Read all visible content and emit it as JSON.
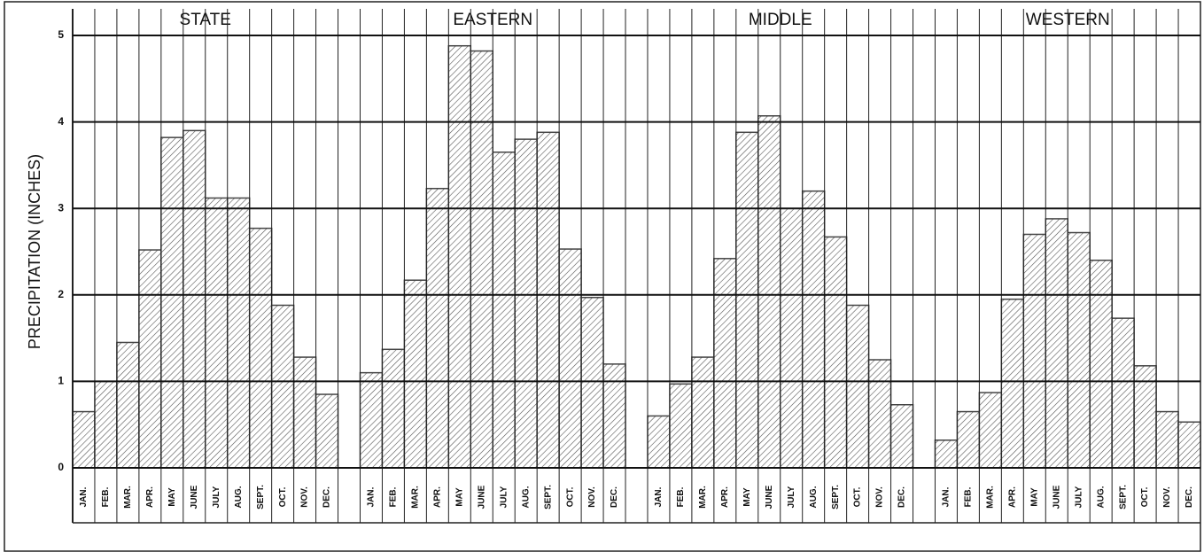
{
  "chart_data": {
    "type": "bar",
    "ylabel": "PRECIPITATION (INCHES)",
    "categories": [
      "JAN.",
      "FEB.",
      "MAR.",
      "APR.",
      "MAY",
      "JUNE",
      "JULY",
      "AUG.",
      "SEPT.",
      "OCT.",
      "NOV.",
      "DEC."
    ],
    "series": [
      {
        "name": "STATE",
        "color": "#444444",
        "values": [
          0.65,
          1.0,
          1.45,
          2.52,
          3.82,
          3.9,
          3.12,
          3.12,
          2.77,
          1.88,
          1.28,
          0.85
        ]
      },
      {
        "name": "EASTERN",
        "color": "#444444",
        "values": [
          1.1,
          1.37,
          2.17,
          3.23,
          4.88,
          4.82,
          3.65,
          3.8,
          3.88,
          2.53,
          1.97,
          1.2
        ]
      },
      {
        "name": "MIDDLE",
        "color": "#444444",
        "values": [
          0.6,
          0.97,
          1.28,
          2.42,
          3.88,
          4.07,
          3.0,
          3.2,
          2.67,
          1.88,
          1.25,
          0.73
        ]
      },
      {
        "name": "WESTERN",
        "color": "#444444",
        "values": [
          0.32,
          0.65,
          0.87,
          1.95,
          2.7,
          2.88,
          2.72,
          2.4,
          1.73,
          1.18,
          0.65,
          0.53
        ]
      }
    ],
    "ylim": [
      0,
      5
    ],
    "yticks": [
      0,
      1,
      2,
      3,
      4,
      5
    ],
    "grid": true
  }
}
